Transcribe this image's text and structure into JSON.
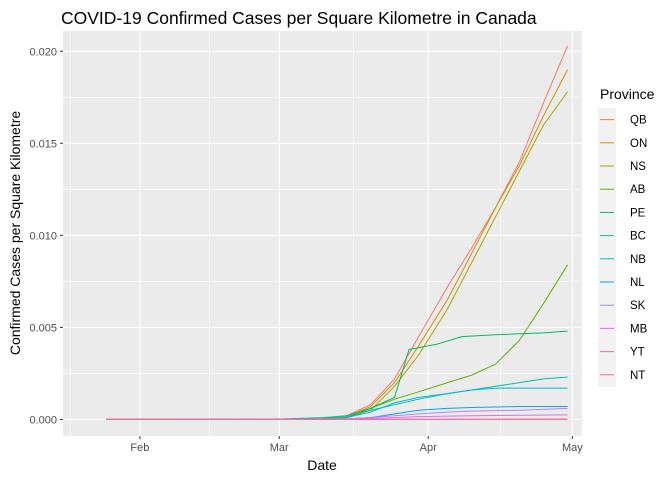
{
  "chart_data": {
    "type": "line",
    "title": "COVID-19 Confirmed Cases per Square Kilometre in Canada",
    "xlabel": "Date",
    "ylabel": "Confirmed Cases per Square Kilometre",
    "x_ticks": [
      {
        "label": "Feb",
        "date": "2020-02-01"
      },
      {
        "label": "Mar",
        "date": "2020-03-01"
      },
      {
        "label": "Apr",
        "date": "2020-04-01"
      },
      {
        "label": "May",
        "date": "2020-05-01"
      }
    ],
    "y_ticks": [
      "0.000",
      "0.005",
      "0.010",
      "0.015",
      "0.020"
    ],
    "xlim": [
      "2020-01-16",
      "2020-05-03"
    ],
    "ylim": [
      -0.0009,
      0.0211
    ],
    "grid": true,
    "legend": {
      "title": "Province",
      "position": "right"
    },
    "series": [
      {
        "name": "QB",
        "color": "#F8766D",
        "points": [
          [
            "2020-01-25",
            0
          ],
          [
            "2020-03-01",
            0
          ],
          [
            "2020-03-10",
            5e-05
          ],
          [
            "2020-03-15",
            0.0002
          ],
          [
            "2020-03-20",
            0.0008
          ],
          [
            "2020-03-25",
            0.0022
          ],
          [
            "2020-03-30",
            0.0045
          ],
          [
            "2020-04-05",
            0.0072
          ],
          [
            "2020-04-10",
            0.0093
          ],
          [
            "2020-04-15",
            0.0115
          ],
          [
            "2020-04-20",
            0.014
          ],
          [
            "2020-04-25",
            0.0172
          ],
          [
            "2020-04-30",
            0.0203
          ]
        ]
      },
      {
        "name": "ON",
        "color": "#DB8E00",
        "points": [
          [
            "2020-01-25",
            0
          ],
          [
            "2020-03-01",
            0
          ],
          [
            "2020-03-10",
            5e-05
          ],
          [
            "2020-03-15",
            0.00015
          ],
          [
            "2020-03-20",
            0.0007
          ],
          [
            "2020-03-25",
            0.002
          ],
          [
            "2020-03-30",
            0.004
          ],
          [
            "2020-04-05",
            0.0065
          ],
          [
            "2020-04-10",
            0.009
          ],
          [
            "2020-04-15",
            0.0115
          ],
          [
            "2020-04-20",
            0.0138
          ],
          [
            "2020-04-25",
            0.0165
          ],
          [
            "2020-04-30",
            0.019
          ]
        ]
      },
      {
        "name": "NS",
        "color": "#AEA200",
        "points": [
          [
            "2020-01-25",
            0
          ],
          [
            "2020-03-01",
            0
          ],
          [
            "2020-03-10",
            3e-05
          ],
          [
            "2020-03-15",
            0.0001
          ],
          [
            "2020-03-20",
            0.0005
          ],
          [
            "2020-03-25",
            0.0018
          ],
          [
            "2020-03-30",
            0.0035
          ],
          [
            "2020-04-05",
            0.006
          ],
          [
            "2020-04-10",
            0.0085
          ],
          [
            "2020-04-15",
            0.011
          ],
          [
            "2020-04-20",
            0.0135
          ],
          [
            "2020-04-25",
            0.016
          ],
          [
            "2020-04-30",
            0.0178
          ]
        ]
      },
      {
        "name": "AB",
        "color": "#64B200",
        "points": [
          [
            "2020-01-25",
            0
          ],
          [
            "2020-03-01",
            0
          ],
          [
            "2020-03-10",
            3e-05
          ],
          [
            "2020-03-15",
            0.0002
          ],
          [
            "2020-03-20",
            0.0006
          ],
          [
            "2020-03-25",
            0.0011
          ],
          [
            "2020-03-30",
            0.0015
          ],
          [
            "2020-04-05",
            0.002
          ],
          [
            "2020-04-10",
            0.0024
          ],
          [
            "2020-04-15",
            0.003
          ],
          [
            "2020-04-20",
            0.0043
          ],
          [
            "2020-04-25",
            0.0063
          ],
          [
            "2020-04-30",
            0.0084
          ]
        ]
      },
      {
        "name": "PE",
        "color": "#00BD5C",
        "points": [
          [
            "2020-01-25",
            0
          ],
          [
            "2020-03-01",
            0
          ],
          [
            "2020-03-12",
            0
          ],
          [
            "2020-03-15",
            0.0001
          ],
          [
            "2020-03-20",
            0.0006
          ],
          [
            "2020-03-25",
            0.0012
          ],
          [
            "2020-03-28",
            0.0038
          ],
          [
            "2020-04-03",
            0.0041
          ],
          [
            "2020-04-08",
            0.0045
          ],
          [
            "2020-04-15",
            0.0046
          ],
          [
            "2020-04-25",
            0.0047
          ],
          [
            "2020-04-30",
            0.0048
          ]
        ]
      },
      {
        "name": "BC",
        "color": "#00C1A7",
        "points": [
          [
            "2020-01-25",
            0
          ],
          [
            "2020-03-01",
            2e-05
          ],
          [
            "2020-03-10",
            0.0001
          ],
          [
            "2020-03-15",
            0.0002
          ],
          [
            "2020-03-20",
            0.0005
          ],
          [
            "2020-03-25",
            0.0008
          ],
          [
            "2020-03-30",
            0.0011
          ],
          [
            "2020-04-05",
            0.0014
          ],
          [
            "2020-04-10",
            0.0016
          ],
          [
            "2020-04-15",
            0.0018
          ],
          [
            "2020-04-20",
            0.002
          ],
          [
            "2020-04-25",
            0.0022
          ],
          [
            "2020-04-30",
            0.0023
          ]
        ]
      },
      {
        "name": "NB",
        "color": "#00BADE",
        "points": [
          [
            "2020-01-25",
            0
          ],
          [
            "2020-03-01",
            0
          ],
          [
            "2020-03-10",
            2e-05
          ],
          [
            "2020-03-15",
            0.0001
          ],
          [
            "2020-03-20",
            0.0004
          ],
          [
            "2020-03-25",
            0.0009
          ],
          [
            "2020-03-30",
            0.0012
          ],
          [
            "2020-04-05",
            0.0014
          ],
          [
            "2020-04-10",
            0.0016
          ],
          [
            "2020-04-15",
            0.0017
          ],
          [
            "2020-04-30",
            0.0017
          ]
        ]
      },
      {
        "name": "NL",
        "color": "#00A6FF",
        "points": [
          [
            "2020-01-25",
            0
          ],
          [
            "2020-03-01",
            0
          ],
          [
            "2020-03-15",
            3e-05
          ],
          [
            "2020-03-20",
            0.0001
          ],
          [
            "2020-03-25",
            0.0003
          ],
          [
            "2020-03-30",
            0.0005
          ],
          [
            "2020-04-05",
            0.0006
          ],
          [
            "2020-04-10",
            0.00065
          ],
          [
            "2020-04-20",
            0.0007
          ],
          [
            "2020-04-30",
            0.0007
          ]
        ]
      },
      {
        "name": "SK",
        "color": "#B385FF",
        "points": [
          [
            "2020-01-25",
            0
          ],
          [
            "2020-03-01",
            0
          ],
          [
            "2020-03-12",
            0
          ],
          [
            "2020-03-15",
            3e-05
          ],
          [
            "2020-03-20",
            0.0001
          ],
          [
            "2020-03-25",
            0.0002
          ],
          [
            "2020-03-30",
            0.0003
          ],
          [
            "2020-04-05",
            0.0004
          ],
          [
            "2020-04-10",
            0.00045
          ],
          [
            "2020-04-20",
            0.0005
          ],
          [
            "2020-04-30",
            0.0006
          ]
        ]
      },
      {
        "name": "MB",
        "color": "#EF67EB",
        "points": [
          [
            "2020-01-25",
            0
          ],
          [
            "2020-03-01",
            0
          ],
          [
            "2020-03-15",
            2e-05
          ],
          [
            "2020-03-20",
            5e-05
          ],
          [
            "2020-03-25",
            0.0001
          ],
          [
            "2020-03-30",
            0.00015
          ],
          [
            "2020-04-10",
            0.0002
          ],
          [
            "2020-04-30",
            0.00025
          ]
        ]
      },
      {
        "name": "YT",
        "color": "#FF63B6",
        "points": [
          [
            "2020-01-25",
            0
          ],
          [
            "2020-03-20",
            0
          ],
          [
            "2020-03-25",
            1e-05
          ],
          [
            "2020-04-30",
            2e-05
          ]
        ]
      },
      {
        "name": "NT",
        "color": "#FF6C91",
        "points": [
          [
            "2020-01-25",
            0
          ],
          [
            "2020-03-25",
            0
          ],
          [
            "2020-04-30",
            5e-06
          ]
        ]
      }
    ]
  }
}
